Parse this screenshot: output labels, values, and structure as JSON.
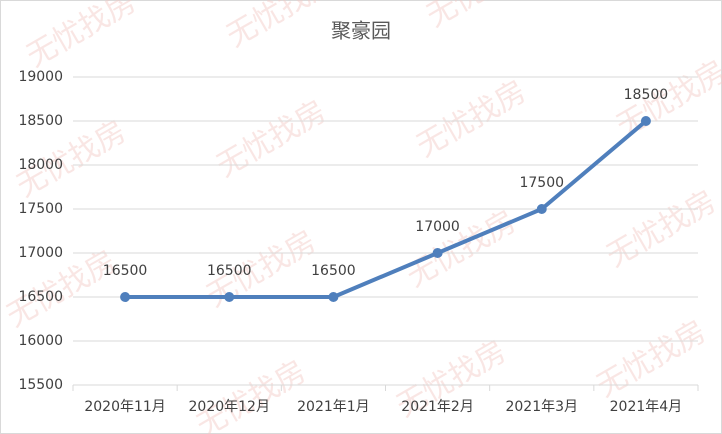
{
  "chart_data": {
    "type": "line",
    "title": "聚豪园",
    "categories": [
      "2020年11月",
      "2020年12月",
      "2021年1月",
      "2021年2月",
      "2021年3月",
      "2021年4月"
    ],
    "values": [
      16500,
      16500,
      16500,
      17000,
      17500,
      18500
    ],
    "color": "#4f7fbc",
    "ylim": [
      15500,
      19000
    ],
    "yticks": [
      15500,
      16000,
      16500,
      17000,
      17500,
      18000,
      18500,
      19000
    ],
    "grid": true,
    "data_labels": true,
    "watermark": "无忧找房"
  }
}
